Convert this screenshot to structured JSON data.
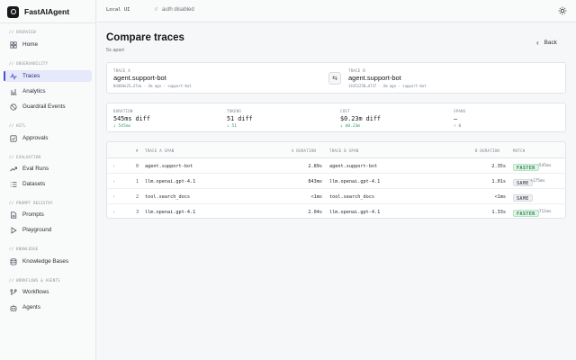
{
  "app": {
    "name": "FastAIAgent"
  },
  "topbar": {
    "env": "Local UI",
    "separator": "//",
    "auth": "auth disabled"
  },
  "sidebar": {
    "sections": [
      {
        "label": "// OVERVIEW",
        "items": [
          {
            "label": "Home",
            "icon": "grid-icon",
            "active": false
          }
        ]
      },
      {
        "label": "// OBSERVABILITY",
        "items": [
          {
            "label": "Traces",
            "icon": "activity-icon",
            "active": true
          },
          {
            "label": "Analytics",
            "icon": "bar-chart-icon",
            "active": false
          },
          {
            "label": "Guardrail Events",
            "icon": "shield-icon",
            "active": false
          }
        ]
      },
      {
        "label": "// HITL",
        "items": [
          {
            "label": "Approvals",
            "icon": "check-square-icon",
            "active": false
          }
        ]
      },
      {
        "label": "// EVALUATION",
        "items": [
          {
            "label": "Eval Runs",
            "icon": "trend-icon",
            "active": false
          },
          {
            "label": "Datasets",
            "icon": "list-icon",
            "active": false
          }
        ]
      },
      {
        "label": "// PROMPT REGISTRY",
        "items": [
          {
            "label": "Prompts",
            "icon": "file-icon",
            "active": false
          },
          {
            "label": "Playground",
            "icon": "play-icon",
            "active": false
          }
        ]
      },
      {
        "label": "// KNOWLEDGE",
        "items": [
          {
            "label": "Knowledge Bases",
            "icon": "database-icon",
            "active": false
          }
        ]
      },
      {
        "label": "// WORKFLOWS & AGENTS",
        "items": [
          {
            "label": "Workflows",
            "icon": "workflow-icon",
            "active": false
          },
          {
            "label": "Agents",
            "icon": "bot-icon",
            "active": false
          }
        ]
      }
    ]
  },
  "page": {
    "title": "Compare traces",
    "subtitle": "5s apart",
    "back_label": "Back"
  },
  "traces": {
    "a": {
      "label": "TRACE A",
      "name": "agent.support-bot",
      "meta": "8dd8de25…37aa · 4m ago · support-bot"
    },
    "b": {
      "label": "TRACE B",
      "name": "agent.support-bot",
      "meta": "14351258…d737 · 4m ago · support-bot"
    },
    "swap_glyph": "⇆"
  },
  "stats": [
    {
      "label": "DURATION",
      "value": "545ms diff",
      "delta": "↓ 545ms"
    },
    {
      "label": "TOKENS",
      "value": "51 diff",
      "delta": "↓ 51"
    },
    {
      "label": "COST",
      "value": "$0.23m diff",
      "delta": "↓ $0.23m"
    },
    {
      "label": "SPANS",
      "value": "—",
      "delta": "↑ 0"
    }
  ],
  "table": {
    "headers": {
      "idx": "#",
      "a_span": "TRACE A SPAN",
      "a_dur": "A DURATION",
      "b_span": "TRACE B SPAN",
      "b_dur": "B DURATION",
      "match": "MATCH"
    },
    "rows": [
      {
        "caret": "›",
        "idx": "0",
        "a_span": "agent.support-bot",
        "a_dur": "2.89s",
        "b_span": "agent.support-bot",
        "b_dur": "2.35s",
        "match": "FASTER",
        "delta": "-545ms"
      },
      {
        "caret": "›",
        "idx": "1",
        "a_span": "llm.openai.gpt-4.1",
        "a_dur": "843ms",
        "b_span": "llm.openai.gpt-4.1",
        "b_dur": "1.01s",
        "match": "SAME",
        "delta": "+175ms"
      },
      {
        "caret": "›",
        "idx": "2",
        "a_span": "tool.search_docs",
        "a_dur": "<1ms",
        "b_span": "tool.search_docs",
        "b_dur": "<1ms",
        "match": "SAME",
        "delta": ""
      },
      {
        "caret": "›",
        "idx": "3",
        "a_span": "llm.openai.gpt-4.1",
        "a_dur": "2.04s",
        "b_span": "llm.openai.gpt-4.1",
        "b_dur": "1.33s",
        "match": "FASTER",
        "delta": "-711ms"
      }
    ]
  },
  "colors": {
    "accent": "#4a52c9",
    "positive": "#2f9e5c",
    "sidebar_active_bg": "#e6e8fb"
  }
}
